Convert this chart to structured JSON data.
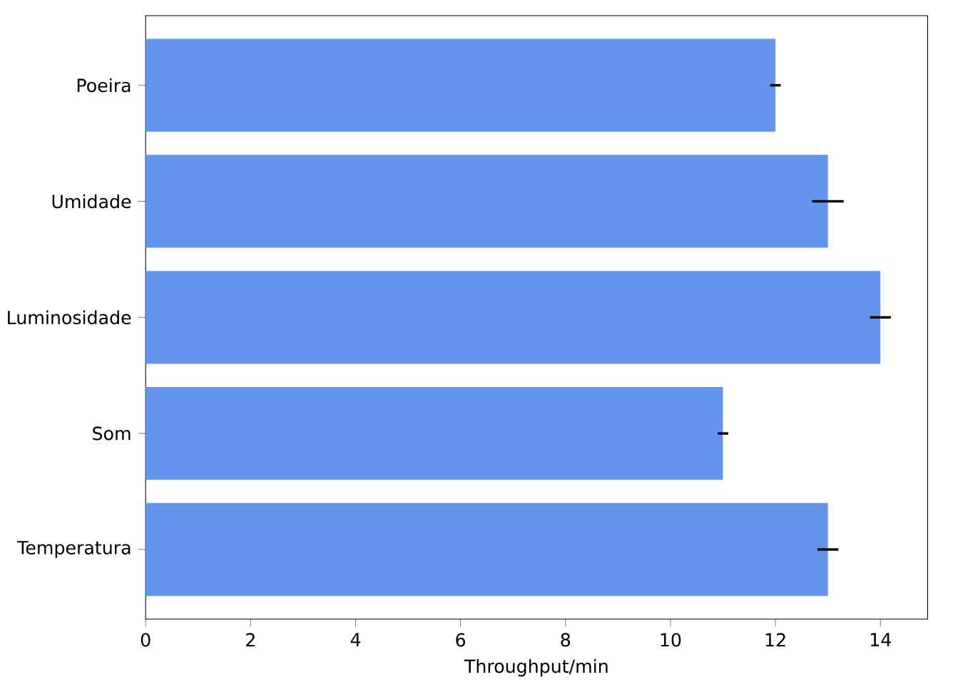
{
  "chart_data": {
    "type": "bar",
    "orientation": "horizontal",
    "xlabel": "Throughput/min",
    "categories": [
      "Poeira",
      "Umidade",
      "Luminosidade",
      "Som",
      "Temperatura"
    ],
    "values": [
      12,
      13,
      14,
      11,
      13
    ],
    "errors": [
      0.1,
      0.3,
      0.2,
      0.1,
      0.2
    ],
    "color": "#6495ed",
    "xlim": [
      0,
      14.9
    ],
    "xticks": [
      0,
      2,
      4,
      6,
      8,
      10,
      12,
      14
    ]
  }
}
